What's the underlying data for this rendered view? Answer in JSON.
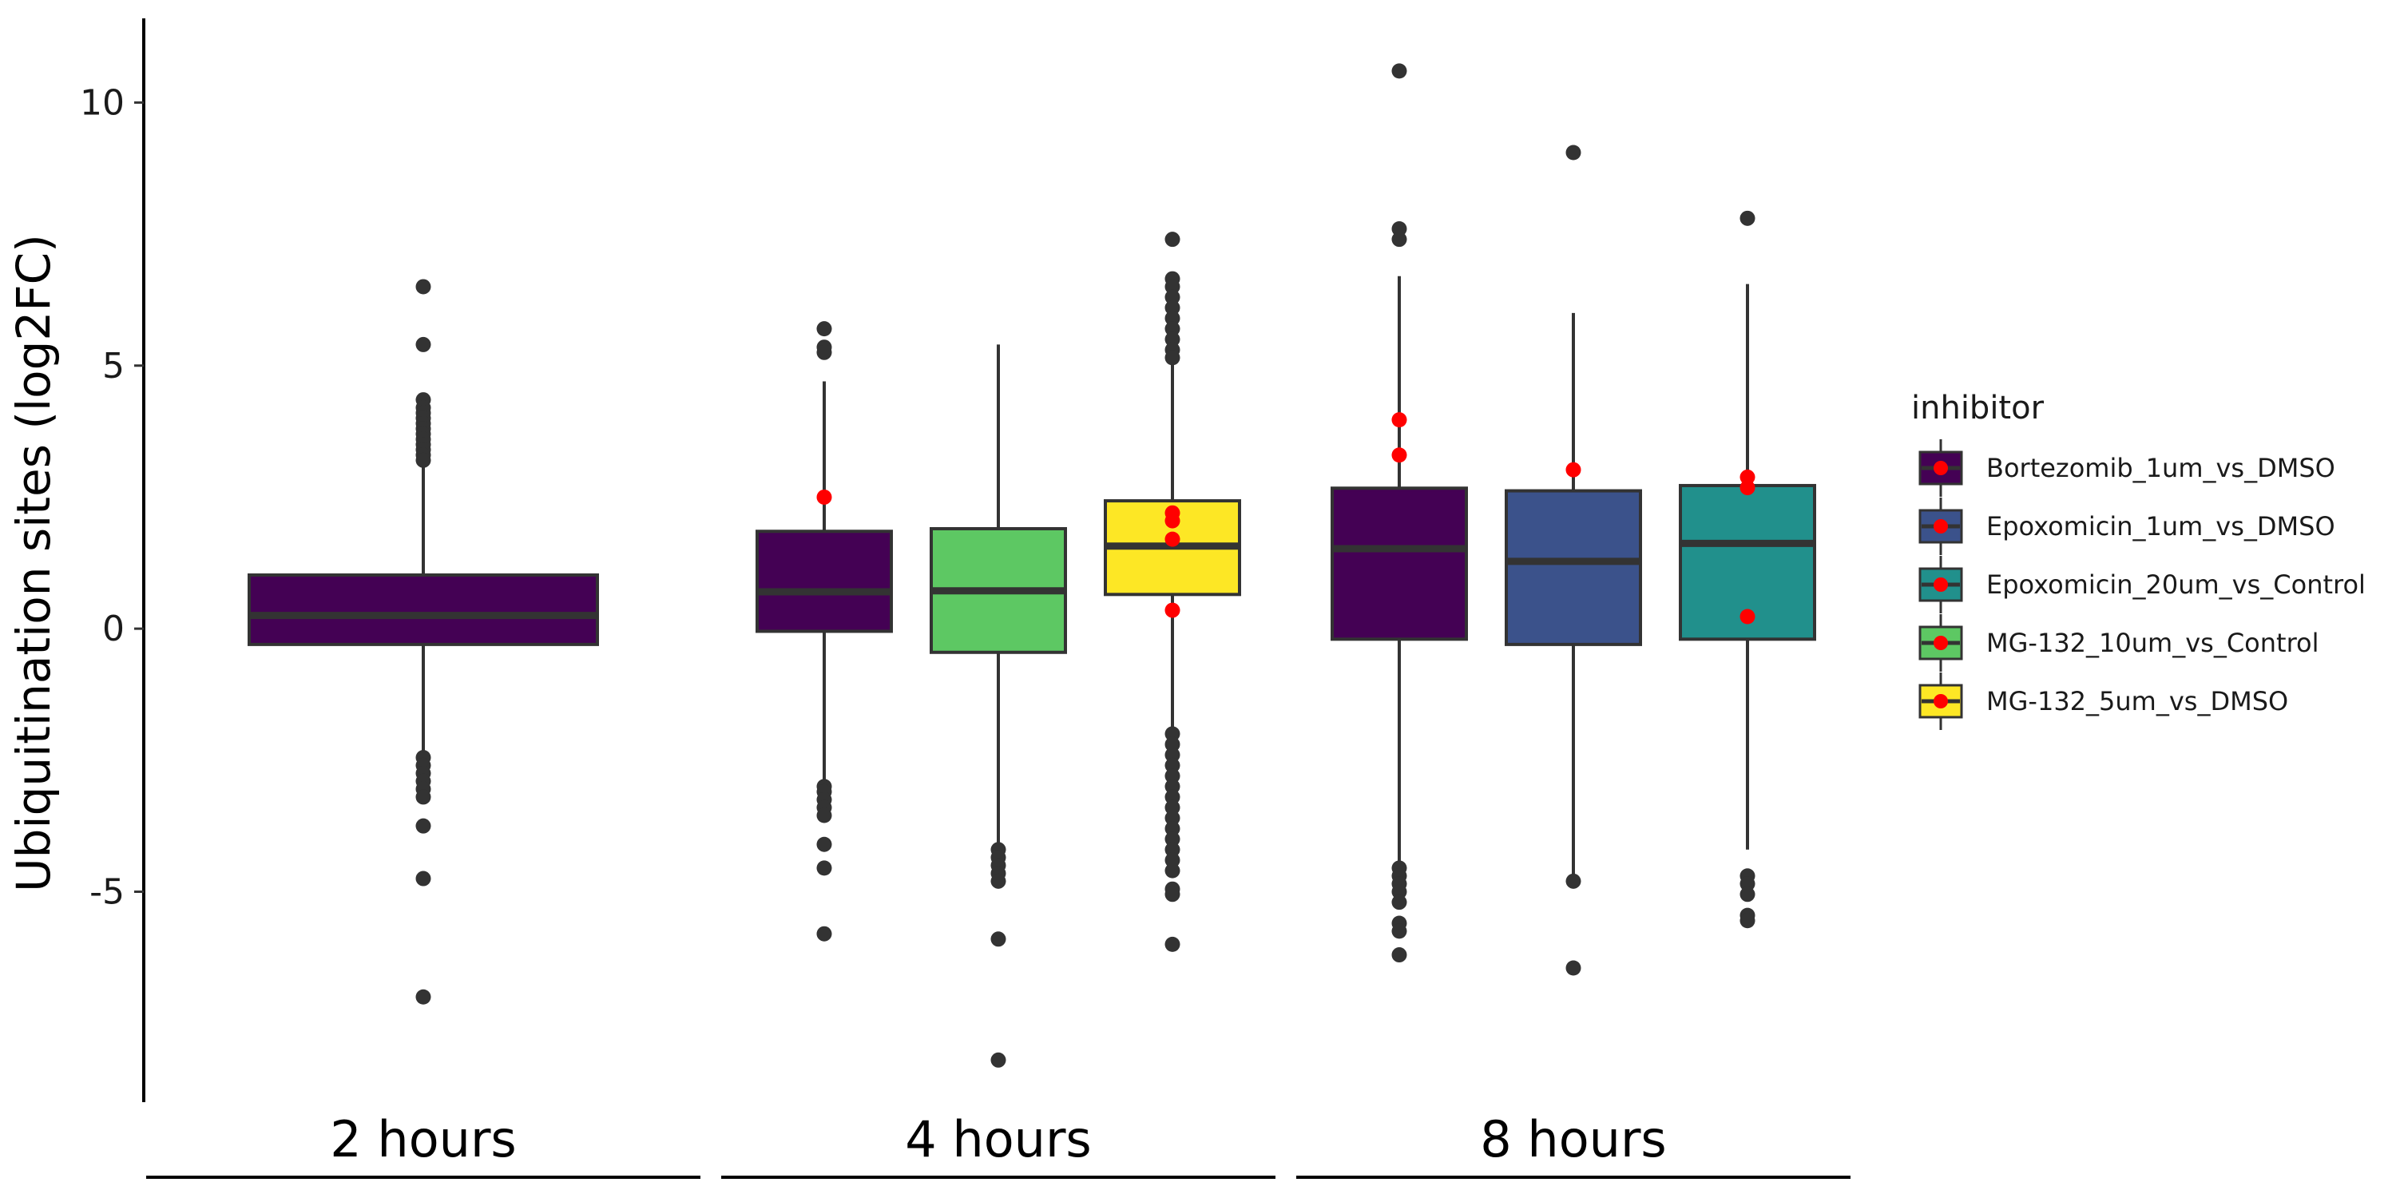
{
  "chart_data": {
    "type": "box",
    "ylabel": "Ubiquitination sites (log2FC)",
    "y_ticks": [
      -5,
      0,
      5,
      10
    ],
    "ylim": [
      -9.0,
      11.6
    ],
    "facets": [
      "2 hours",
      "4 hours",
      "8 hours"
    ],
    "legend": {
      "title": "inhibitor",
      "position": "right",
      "entries": [
        {
          "name": "Bortezomib_1um_vs_DMSO",
          "color": "#440154"
        },
        {
          "name": "Epoxomicin_1um_vs_DMSO",
          "color": "#3B528B"
        },
        {
          "name": "Epoxomicin_20um_vs_Control",
          "color": "#21908C"
        },
        {
          "name": "MG-132_10um_vs_Control",
          "color": "#5DC863"
        },
        {
          "name": "MG-132_5um_vs_DMSO",
          "color": "#FDE725"
        }
      ]
    },
    "highlight_color": "#FF0000",
    "boxes": [
      {
        "facet": "2 hours",
        "inhibitor": "Bortezomib_1um_vs_DMSO",
        "q1": -0.3,
        "median": 0.25,
        "q3": 1.02,
        "whisker_low": -2.4,
        "whisker_high": 3.1,
        "outliers": [
          6.5,
          5.4,
          4.35,
          4.2,
          4.1,
          4.0,
          3.9,
          3.8,
          3.7,
          3.6,
          3.5,
          3.4,
          3.3,
          3.2,
          -2.45,
          -2.6,
          -2.75,
          -2.9,
          -3.05,
          -3.2,
          -3.75,
          -4.75,
          -7.0
        ],
        "highlighted": []
      },
      {
        "facet": "4 hours",
        "inhibitor": "Bortezomib_1um_vs_DMSO",
        "q1": -0.05,
        "median": 0.7,
        "q3": 1.85,
        "whisker_low": -2.95,
        "whisker_high": 4.7,
        "outliers": [
          5.7,
          5.35,
          5.25,
          -3.0,
          -3.1,
          -3.25,
          -3.4,
          -3.55,
          -4.1,
          -4.55,
          -5.8
        ],
        "highlighted": [
          2.5
        ]
      },
      {
        "facet": "4 hours",
        "inhibitor": "MG-132_10um_vs_Control",
        "q1": -0.45,
        "median": 0.72,
        "q3": 1.9,
        "whisker_low": -4.1,
        "whisker_high": 5.4,
        "outliers": [
          -4.2,
          -4.35,
          -4.5,
          -4.65,
          -4.8,
          -5.9,
          -8.2
        ],
        "highlighted": []
      },
      {
        "facet": "4 hours",
        "inhibitor": "MG-132_5um_vs_DMSO",
        "q1": 0.65,
        "median": 1.57,
        "q3": 2.43,
        "whisker_low": -1.95,
        "whisker_high": 5.05,
        "outliers": [
          7.4,
          6.65,
          6.5,
          6.3,
          6.1,
          5.9,
          5.7,
          5.5,
          5.3,
          5.15,
          -2.0,
          -2.2,
          -2.4,
          -2.6,
          -2.8,
          -3.0,
          -3.2,
          -3.4,
          -3.6,
          -3.8,
          -4.0,
          -4.2,
          -4.4,
          -4.6,
          -4.95,
          -5.05,
          -6.0
        ],
        "highlighted": [
          2.2,
          2.05,
          1.7,
          0.35
        ]
      },
      {
        "facet": "8 hours",
        "inhibitor": "Bortezomib_1um_vs_DMSO",
        "q1": -0.2,
        "median": 1.52,
        "q3": 2.67,
        "whisker_low": -4.45,
        "whisker_high": 6.7,
        "outliers": [
          10.6,
          7.6,
          7.4,
          -4.55,
          -4.7,
          -4.85,
          -5.0,
          -5.2,
          -5.6,
          -5.75,
          -6.2
        ],
        "highlighted": [
          3.97,
          3.3
        ]
      },
      {
        "facet": "8 hours",
        "inhibitor": "Epoxomicin_1um_vs_DMSO",
        "q1": -0.3,
        "median": 1.28,
        "q3": 2.62,
        "whisker_low": -4.7,
        "whisker_high": 6.0,
        "outliers": [
          9.05,
          -4.8,
          -6.45
        ],
        "highlighted": [
          3.02
        ]
      },
      {
        "facet": "8 hours",
        "inhibitor": "Epoxomicin_20um_vs_Control",
        "q1": -0.2,
        "median": 1.62,
        "q3": 2.72,
        "whisker_low": -4.2,
        "whisker_high": 6.55,
        "outliers": [
          7.8,
          -4.7,
          -4.85,
          -5.05,
          -5.45,
          -5.55
        ],
        "highlighted": [
          2.88,
          2.68,
          0.23
        ]
      }
    ]
  }
}
